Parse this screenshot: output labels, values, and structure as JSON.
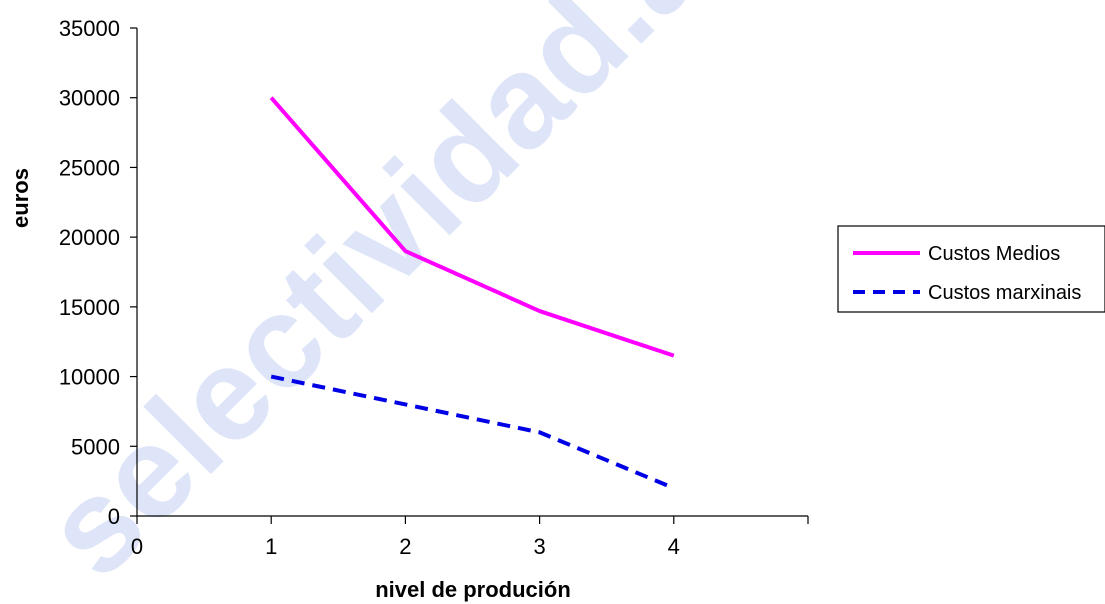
{
  "watermark": {
    "text": "selectividad.az"
  },
  "chart_data": {
    "type": "line",
    "title": "",
    "xlabel": "nivel de produción",
    "ylabel": "euros",
    "xlim": [
      0,
      5
    ],
    "ylim": [
      0,
      35000
    ],
    "x_ticks": [
      "0",
      "1",
      "2",
      "3",
      "4"
    ],
    "y_ticks": [
      "0",
      "5000",
      "10000",
      "15000",
      "20000",
      "25000",
      "30000",
      "35000"
    ],
    "x": [
      1,
      2,
      3,
      4
    ],
    "series": [
      {
        "name": "Custos Medios",
        "values": [
          30000,
          19000,
          14700,
          11500
        ],
        "color": "#ff00ff",
        "style": "solid"
      },
      {
        "name": "Custos marxinais",
        "values": [
          10000,
          8000,
          6000,
          2000
        ],
        "color": "#0000e6",
        "style": "dashed"
      }
    ],
    "grid": false,
    "legend_position": "right"
  }
}
